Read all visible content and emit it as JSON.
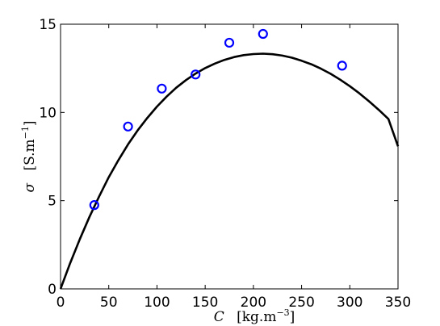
{
  "chart_data": {
    "type": "scatter",
    "title": "",
    "xlabel": {
      "symbol": "C",
      "unit_prefix": "[kg.m",
      "unit_exponent": "−3",
      "unit_suffix": "]"
    },
    "ylabel": {
      "symbol": "σ",
      "unit_prefix": "[S.m",
      "unit_exponent": "−1",
      "unit_suffix": "]"
    },
    "xlim": [
      0,
      350
    ],
    "ylim": [
      0,
      15
    ],
    "xticks": [
      0,
      50,
      100,
      150,
      200,
      250,
      300,
      350
    ],
    "yticks": [
      0,
      5,
      10,
      15
    ],
    "xtick_labels": [
      "0",
      "50",
      "100",
      "150",
      "200",
      "250",
      "300",
      "350"
    ],
    "ytick_labels": [
      "0",
      "5",
      "10",
      "15"
    ],
    "grid": false,
    "legend": "none",
    "series": [
      {
        "kind": "markers",
        "marker": "open-circle",
        "color": "#0000ff",
        "x": [
          35,
          70,
          105,
          140,
          175,
          210,
          292
        ],
        "y": [
          4.75,
          9.2,
          11.35,
          12.15,
          13.95,
          14.45,
          12.65
        ]
      },
      {
        "kind": "line",
        "color": "#000000",
        "x": [
          0,
          10,
          20,
          30,
          40,
          50,
          60,
          70,
          80,
          90,
          100,
          110,
          120,
          130,
          140,
          150,
          160,
          170,
          180,
          190,
          200,
          210,
          220,
          230,
          240,
          250,
          260,
          270,
          280,
          290,
          300,
          310,
          320,
          330,
          340,
          350
        ],
        "y": [
          0,
          1.46,
          2.82,
          4.08,
          5.24,
          6.33,
          7.3,
          8.19,
          8.98,
          9.69,
          10.33,
          10.9,
          11.4,
          11.83,
          12.2,
          12.51,
          12.77,
          12.98,
          13.14,
          13.25,
          13.31,
          13.33,
          13.3,
          13.22,
          13.1,
          12.93,
          12.73,
          12.48,
          12.19,
          11.86,
          11.49,
          11.08,
          10.63,
          10.15,
          9.63,
          8.08
        ]
      }
    ]
  }
}
